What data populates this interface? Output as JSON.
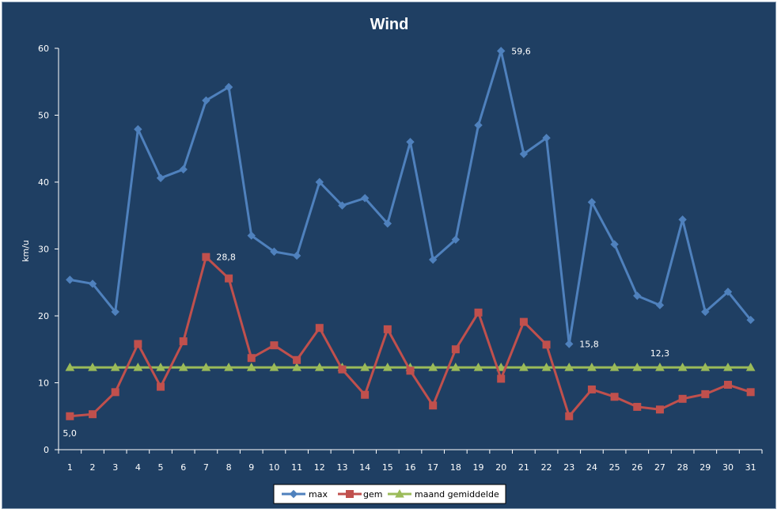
{
  "chart_data": {
    "type": "line",
    "title": "Wind",
    "xlabel": "",
    "ylabel": "km/u",
    "ylim": [
      0,
      60
    ],
    "yticks": [
      0,
      10,
      20,
      30,
      40,
      50,
      60
    ],
    "x": [
      1,
      2,
      3,
      4,
      5,
      6,
      7,
      8,
      9,
      10,
      11,
      12,
      13,
      14,
      15,
      16,
      17,
      18,
      19,
      20,
      21,
      22,
      23,
      24,
      25,
      26,
      27,
      28,
      29,
      30,
      31
    ],
    "grid": false,
    "legend": "bottom",
    "series": [
      {
        "name": "max",
        "color": "#4F81BD",
        "marker": "diamond",
        "values": [
          25.4,
          24.8,
          20.6,
          47.9,
          40.6,
          41.9,
          52.2,
          54.2,
          32.0,
          29.6,
          29.0,
          40.0,
          36.5,
          37.6,
          33.8,
          46.0,
          28.4,
          31.4,
          48.5,
          59.6,
          44.2,
          46.6,
          15.8,
          37.0,
          30.7,
          23.0,
          21.6,
          34.4,
          20.6,
          23.6,
          19.4
        ]
      },
      {
        "name": "gem",
        "color": "#C0504D",
        "marker": "square",
        "values": [
          5.0,
          5.3,
          8.6,
          15.8,
          9.4,
          16.2,
          28.8,
          25.6,
          13.7,
          15.6,
          13.4,
          18.2,
          12.0,
          8.2,
          18.0,
          11.8,
          6.6,
          15.0,
          20.5,
          10.6,
          19.1,
          15.7,
          5.0,
          9.0,
          7.9,
          6.4,
          6.0,
          7.6,
          8.3,
          9.7,
          8.6
        ]
      },
      {
        "name": "maand gemiddelde",
        "color": "#9BBB59",
        "marker": "triangle",
        "values": [
          12.3,
          12.3,
          12.3,
          12.3,
          12.3,
          12.3,
          12.3,
          12.3,
          12.3,
          12.3,
          12.3,
          12.3,
          12.3,
          12.3,
          12.3,
          12.3,
          12.3,
          12.3,
          12.3,
          12.3,
          12.3,
          12.3,
          12.3,
          12.3,
          12.3,
          12.3,
          12.3,
          12.3,
          12.3,
          12.3,
          12.3
        ]
      }
    ],
    "annotations": [
      {
        "series": 0,
        "x": 20,
        "text": "59,6",
        "anchor": "right"
      },
      {
        "series": 0,
        "x": 23,
        "text": "15,8",
        "anchor": "right"
      },
      {
        "series": 1,
        "x": 7,
        "text": "28,8",
        "anchor": "right"
      },
      {
        "series": 1,
        "x": 1,
        "text": "5,0",
        "anchor": "below"
      },
      {
        "series": 2,
        "x": 27,
        "text": "12,3",
        "anchor": "above"
      }
    ]
  }
}
